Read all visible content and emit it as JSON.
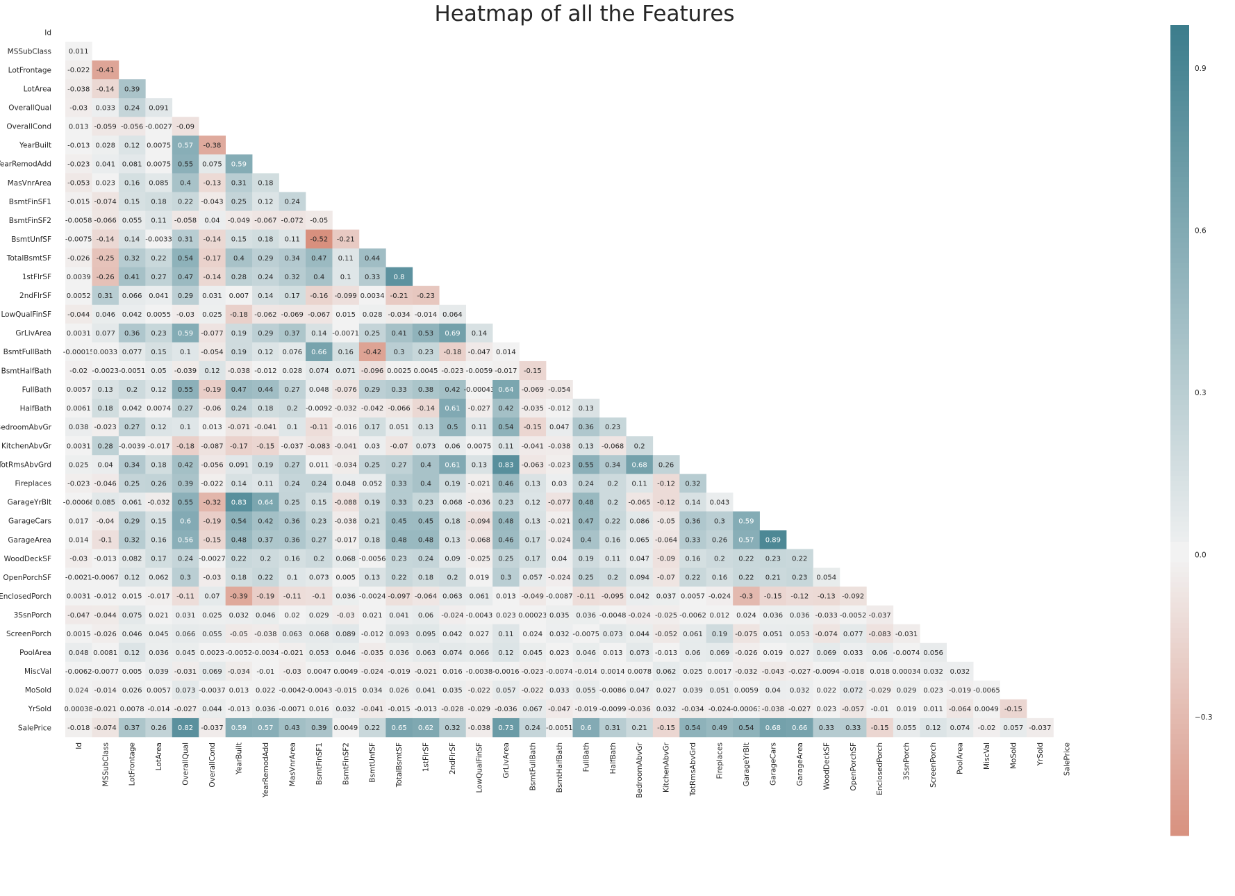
{
  "chart_data": {
    "type": "heatmap",
    "title": "Heatmap of all the Features",
    "features": [
      "Id",
      "MSSubClass",
      "LotFrontage",
      "LotArea",
      "OverallQual",
      "OverallCond",
      "YearBuilt",
      "YearRemodAdd",
      "MasVnrArea",
      "BsmtFinSF1",
      "BsmtFinSF2",
      "BsmtUnfSF",
      "TotalBsmtSF",
      "1stFlrSF",
      "2ndFlrSF",
      "LowQualFinSF",
      "GrLivArea",
      "BsmtFullBath",
      "BsmtHalfBath",
      "FullBath",
      "HalfBath",
      "BedroomAbvGr",
      "KitchenAbvGr",
      "TotRmsAbvGrd",
      "Fireplaces",
      "GarageYrBlt",
      "GarageCars",
      "GarageArea",
      "WoodDeckSF",
      "OpenPorchSF",
      "EnclosedPorch",
      "3SsnPorch",
      "ScreenPorch",
      "PoolArea",
      "MiscVal",
      "MoSold",
      "YrSold",
      "SalePrice"
    ],
    "mask": "upper triangle including diagonal",
    "rows": [
      [],
      [
        "0.011"
      ],
      [
        "-0.022",
        "-0.41"
      ],
      [
        "-0.038",
        "-0.14",
        "0.39"
      ],
      [
        "-0.03",
        "0.033",
        "0.24",
        "0.091"
      ],
      [
        "0.013",
        "-0.059",
        "-0.056",
        "-0.0027",
        "-0.09"
      ],
      [
        "-0.013",
        "0.028",
        "0.12",
        "0.0075",
        "0.57",
        "-0.38"
      ],
      [
        "-0.023",
        "0.041",
        "0.081",
        "0.0075",
        "0.55",
        "0.075",
        "0.59"
      ],
      [
        "-0.053",
        "0.023",
        "0.16",
        "0.085",
        "0.4",
        "-0.13",
        "0.31",
        "0.18"
      ],
      [
        "-0.015",
        "-0.074",
        "0.15",
        "0.18",
        "0.22",
        "-0.043",
        "0.25",
        "0.12",
        "0.24"
      ],
      [
        "-0.0058",
        "-0.066",
        "0.055",
        "0.11",
        "-0.058",
        "0.04",
        "-0.049",
        "-0.067",
        "-0.072",
        "-0.05"
      ],
      [
        "-0.0075",
        "-0.14",
        "0.14",
        "-0.0033",
        "0.31",
        "-0.14",
        "0.15",
        "0.18",
        "0.11",
        "-0.52",
        "-0.21"
      ],
      [
        "-0.026",
        "-0.25",
        "0.32",
        "0.22",
        "0.54",
        "-0.17",
        "0.4",
        "0.29",
        "0.34",
        "0.47",
        "0.11",
        "0.44"
      ],
      [
        "0.0039",
        "-0.26",
        "0.41",
        "0.27",
        "0.47",
        "-0.14",
        "0.28",
        "0.24",
        "0.32",
        "0.4",
        "0.1",
        "0.33",
        "0.8"
      ],
      [
        "0.0052",
        "0.31",
        "0.066",
        "0.041",
        "0.29",
        "0.031",
        "0.007",
        "0.14",
        "0.17",
        "-0.16",
        "-0.099",
        "0.0034",
        "-0.21",
        "-0.23"
      ],
      [
        "-0.044",
        "0.046",
        "0.042",
        "0.0055",
        "-0.03",
        "0.025",
        "-0.18",
        "-0.062",
        "-0.069",
        "-0.067",
        "0.015",
        "0.028",
        "-0.034",
        "-0.014",
        "0.064"
      ],
      [
        "0.0031",
        "0.077",
        "0.36",
        "0.23",
        "0.59",
        "-0.077",
        "0.19",
        "0.29",
        "0.37",
        "0.14",
        "-0.0071",
        "0.25",
        "0.41",
        "0.53",
        "0.69",
        "0.14"
      ],
      [
        "-0.00015",
        "0.0033",
        "0.077",
        "0.15",
        "0.1",
        "-0.054",
        "0.19",
        "0.12",
        "0.076",
        "0.66",
        "0.16",
        "-0.42",
        "0.3",
        "0.23",
        "-0.18",
        "-0.047",
        "0.014"
      ],
      [
        "-0.02",
        "-0.0023",
        "-0.0051",
        "0.05",
        "-0.039",
        "0.12",
        "-0.038",
        "-0.012",
        "0.028",
        "0.074",
        "0.071",
        "-0.096",
        "0.0025",
        "0.0045",
        "-0.023",
        "-0.0059",
        "-0.017",
        "-0.15"
      ],
      [
        "0.0057",
        "0.13",
        "0.2",
        "0.12",
        "0.55",
        "-0.19",
        "0.47",
        "0.44",
        "0.27",
        "0.048",
        "-0.076",
        "0.29",
        "0.33",
        "0.38",
        "0.42",
        "-0.00043",
        "0.64",
        "-0.069",
        "-0.054"
      ],
      [
        "0.0061",
        "0.18",
        "0.042",
        "0.0074",
        "0.27",
        "-0.06",
        "0.24",
        "0.18",
        "0.2",
        "-0.0092",
        "-0.032",
        "-0.042",
        "-0.066",
        "-0.14",
        "0.61",
        "-0.027",
        "0.42",
        "-0.035",
        "-0.012",
        "0.13"
      ],
      [
        "0.038",
        "-0.023",
        "0.27",
        "0.12",
        "0.1",
        "0.013",
        "-0.071",
        "-0.041",
        "0.1",
        "-0.11",
        "-0.016",
        "0.17",
        "0.051",
        "0.13",
        "0.5",
        "0.11",
        "0.54",
        "-0.15",
        "0.047",
        "0.36",
        "0.23"
      ],
      [
        "0.0031",
        "0.28",
        "-0.0039",
        "-0.017",
        "-0.18",
        "-0.087",
        "-0.17",
        "-0.15",
        "-0.037",
        "-0.083",
        "-0.041",
        "0.03",
        "-0.07",
        "0.073",
        "0.06",
        "0.0075",
        "0.11",
        "-0.041",
        "-0.038",
        "0.13",
        "-0.068",
        "0.2"
      ],
      [
        "0.025",
        "0.04",
        "0.34",
        "0.18",
        "0.42",
        "-0.056",
        "0.091",
        "0.19",
        "0.27",
        "0.011",
        "-0.034",
        "0.25",
        "0.27",
        "0.4",
        "0.61",
        "0.13",
        "0.83",
        "-0.063",
        "-0.023",
        "0.55",
        "0.34",
        "0.68",
        "0.26"
      ],
      [
        "-0.023",
        "-0.046",
        "0.25",
        "0.26",
        "0.39",
        "-0.022",
        "0.14",
        "0.11",
        "0.24",
        "0.24",
        "0.048",
        "0.052",
        "0.33",
        "0.4",
        "0.19",
        "-0.021",
        "0.46",
        "0.13",
        "0.03",
        "0.24",
        "0.2",
        "0.11",
        "-0.12",
        "0.32"
      ],
      [
        "-0.00068",
        "0.085",
        "0.061",
        "-0.032",
        "0.55",
        "-0.32",
        "0.83",
        "0.64",
        "0.25",
        "0.15",
        "-0.088",
        "0.19",
        "0.33",
        "0.23",
        "0.068",
        "-0.036",
        "0.23",
        "0.12",
        "-0.077",
        "0.48",
        "0.2",
        "-0.065",
        "-0.12",
        "0.14",
        "0.043"
      ],
      [
        "0.017",
        "-0.04",
        "0.29",
        "0.15",
        "0.6",
        "-0.19",
        "0.54",
        "0.42",
        "0.36",
        "0.23",
        "-0.038",
        "0.21",
        "0.45",
        "0.45",
        "0.18",
        "-0.094",
        "0.48",
        "0.13",
        "-0.021",
        "0.47",
        "0.22",
        "0.086",
        "-0.05",
        "0.36",
        "0.3",
        "0.59"
      ],
      [
        "0.014",
        "-0.1",
        "0.32",
        "0.16",
        "0.56",
        "-0.15",
        "0.48",
        "0.37",
        "0.36",
        "0.27",
        "-0.017",
        "0.18",
        "0.48",
        "0.48",
        "0.13",
        "-0.068",
        "0.46",
        "0.17",
        "-0.024",
        "0.4",
        "0.16",
        "0.065",
        "-0.064",
        "0.33",
        "0.26",
        "0.57",
        "0.89"
      ],
      [
        "-0.03",
        "-0.013",
        "0.082",
        "0.17",
        "0.24",
        "-0.0027",
        "0.22",
        "0.2",
        "0.16",
        "0.2",
        "0.068",
        "-0.0056",
        "0.23",
        "0.24",
        "0.09",
        "-0.025",
        "0.25",
        "0.17",
        "0.04",
        "0.19",
        "0.11",
        "0.047",
        "-0.09",
        "0.16",
        "0.2",
        "0.22",
        "0.23",
        "0.22"
      ],
      [
        "-0.0021",
        "-0.0067",
        "0.12",
        "0.062",
        "0.3",
        "-0.03",
        "0.18",
        "0.22",
        "0.1",
        "0.073",
        "0.005",
        "0.13",
        "0.22",
        "0.18",
        "0.2",
        "0.019",
        "0.3",
        "0.057",
        "-0.024",
        "0.25",
        "0.2",
        "0.094",
        "-0.07",
        "0.22",
        "0.16",
        "0.22",
        "0.21",
        "0.23",
        "0.054"
      ],
      [
        "0.0031",
        "-0.012",
        "0.015",
        "-0.017",
        "-0.11",
        "0.07",
        "-0.39",
        "-0.19",
        "-0.11",
        "-0.1",
        "0.036",
        "-0.0024",
        "-0.097",
        "-0.064",
        "0.063",
        "0.061",
        "0.013",
        "-0.049",
        "-0.0087",
        "-0.11",
        "-0.095",
        "0.042",
        "0.037",
        "0.0057",
        "-0.024",
        "-0.3",
        "-0.15",
        "-0.12",
        "-0.13",
        "-0.092"
      ],
      [
        "-0.047",
        "-0.044",
        "0.075",
        "0.021",
        "0.031",
        "0.025",
        "0.032",
        "0.046",
        "0.02",
        "0.029",
        "-0.03",
        "0.021",
        "0.041",
        "0.06",
        "-0.024",
        "-0.0043",
        "0.023",
        "0.00023",
        "0.035",
        "0.036",
        "-0.0048",
        "-0.024",
        "-0.025",
        "-0.0062",
        "0.012",
        "0.024",
        "0.036",
        "0.036",
        "-0.033",
        "-0.0052",
        "-0.037"
      ],
      [
        "0.0015",
        "-0.026",
        "0.046",
        "0.045",
        "0.066",
        "0.055",
        "-0.05",
        "-0.038",
        "0.063",
        "0.068",
        "0.089",
        "-0.012",
        "0.093",
        "0.095",
        "0.042",
        "0.027",
        "0.11",
        "0.024",
        "0.032",
        "-0.0075",
        "0.073",
        "0.044",
        "-0.052",
        "0.061",
        "0.19",
        "-0.075",
        "0.051",
        "0.053",
        "-0.074",
        "0.077",
        "-0.083",
        "-0.031"
      ],
      [
        "0.048",
        "0.0081",
        "0.12",
        "0.036",
        "0.045",
        "0.0023",
        "-0.0052",
        "-0.0034",
        "-0.021",
        "0.053",
        "0.046",
        "-0.035",
        "0.036",
        "0.063",
        "0.074",
        "0.066",
        "0.12",
        "0.045",
        "0.023",
        "0.046",
        "0.013",
        "0.073",
        "-0.013",
        "0.06",
        "0.069",
        "-0.026",
        "0.019",
        "0.027",
        "0.069",
        "0.033",
        "0.06",
        "-0.0074",
        "0.056"
      ],
      [
        "-0.0062",
        "-0.0077",
        "0.005",
        "0.039",
        "-0.031",
        "0.069",
        "-0.034",
        "-0.01",
        "-0.03",
        "0.0047",
        "0.0049",
        "-0.024",
        "-0.019",
        "-0.021",
        "0.016",
        "-0.0038",
        "-0.0016",
        "-0.023",
        "-0.0074",
        "-0.014",
        "0.0014",
        "0.0078",
        "0.062",
        "0.025",
        "0.0017",
        "-0.032",
        "-0.043",
        "-0.027",
        "-0.0094",
        "-0.018",
        "0.018",
        "0.00034",
        "0.032",
        "0.032"
      ],
      [
        "0.024",
        "-0.014",
        "0.026",
        "0.0057",
        "0.073",
        "-0.0037",
        "0.013",
        "0.022",
        "-0.0042",
        "-0.0043",
        "-0.015",
        "0.034",
        "0.026",
        "0.041",
        "0.035",
        "-0.022",
        "0.057",
        "-0.022",
        "0.033",
        "0.055",
        "-0.0086",
        "0.047",
        "0.027",
        "0.039",
        "0.051",
        "0.0059",
        "0.04",
        "0.032",
        "0.022",
        "0.072",
        "-0.029",
        "0.029",
        "0.023",
        "-0.019",
        "-0.0065"
      ],
      [
        "0.00038",
        "-0.021",
        "0.0078",
        "-0.014",
        "-0.027",
        "0.044",
        "-0.013",
        "0.036",
        "-0.0071",
        "0.016",
        "0.032",
        "-0.041",
        "-0.015",
        "-0.013",
        "-0.028",
        "-0.029",
        "-0.036",
        "0.067",
        "-0.047",
        "-0.019",
        "-0.0099",
        "-0.036",
        "0.032",
        "-0.034",
        "-0.024",
        "-0.00063",
        "-0.038",
        "-0.027",
        "0.023",
        "-0.057",
        "-0.01",
        "0.019",
        "0.011",
        "-0.064",
        "0.0049",
        "-0.15"
      ],
      [
        "-0.018",
        "-0.074",
        "0.37",
        "0.26",
        "0.82",
        "-0.037",
        "0.59",
        "0.57",
        "0.43",
        "0.39",
        "0.0049",
        "0.22",
        "0.65",
        "0.62",
        "0.32",
        "-0.038",
        "0.73",
        "0.24",
        "-0.0051",
        "0.6",
        "0.31",
        "0.21",
        "-0.15",
        "0.54",
        "0.49",
        "0.54",
        "0.68",
        "0.66",
        "0.33",
        "0.33",
        "-0.15",
        "0.055",
        "0.12",
        "0.074",
        "-0.02",
        "0.057",
        "-0.037"
      ]
    ],
    "colorbar": {
      "vmin": -0.52,
      "vmax": 0.98,
      "ticks": [
        "0.9",
        "0.6",
        "0.3",
        "0.0",
        "−0.3"
      ],
      "neg_color": "#d8907e",
      "mid_color": "#f2f2f2",
      "pos_color": "#3c7d8c"
    }
  }
}
